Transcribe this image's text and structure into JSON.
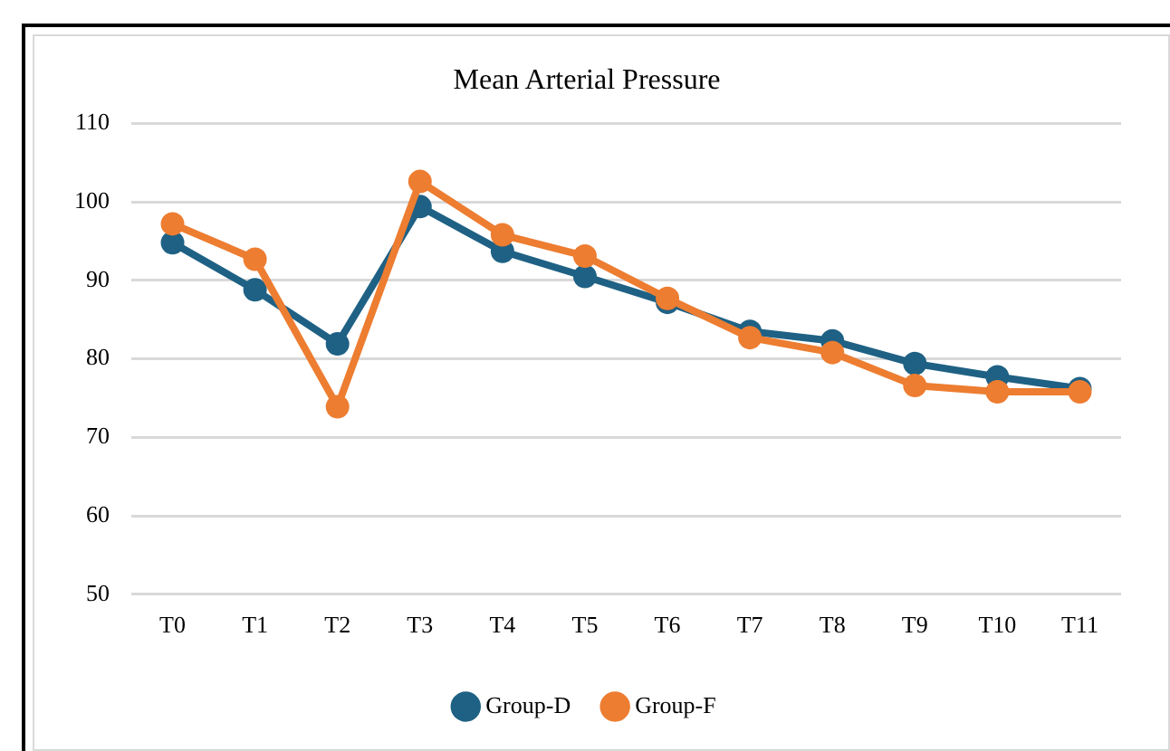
{
  "chart_data": {
    "type": "line",
    "title": "Mean Arterial Pressure",
    "categories": [
      "T0",
      "T1",
      "T2",
      "T3",
      "T4",
      "T5",
      "T6",
      "T7",
      "T8",
      "T9",
      "T10",
      "T11"
    ],
    "series": [
      {
        "name": "Group-D",
        "color": "#1f6184",
        "values": [
          94.8,
          88.8,
          81.9,
          99.4,
          93.7,
          90.5,
          87.2,
          83.5,
          82.3,
          79.4,
          77.7,
          76.2
        ]
      },
      {
        "name": "Group-F",
        "color": "#ed7d31",
        "values": [
          97.2,
          92.7,
          73.9,
          102.6,
          95.8,
          93.1,
          87.7,
          82.7,
          80.8,
          76.6,
          75.8,
          75.8
        ]
      }
    ],
    "ylim": [
      50,
      110
    ],
    "yticks": [
      50,
      60,
      70,
      80,
      90,
      100,
      110
    ],
    "grid": "y",
    "legend": "bottom",
    "marker": "circle",
    "line_style": "solid"
  }
}
